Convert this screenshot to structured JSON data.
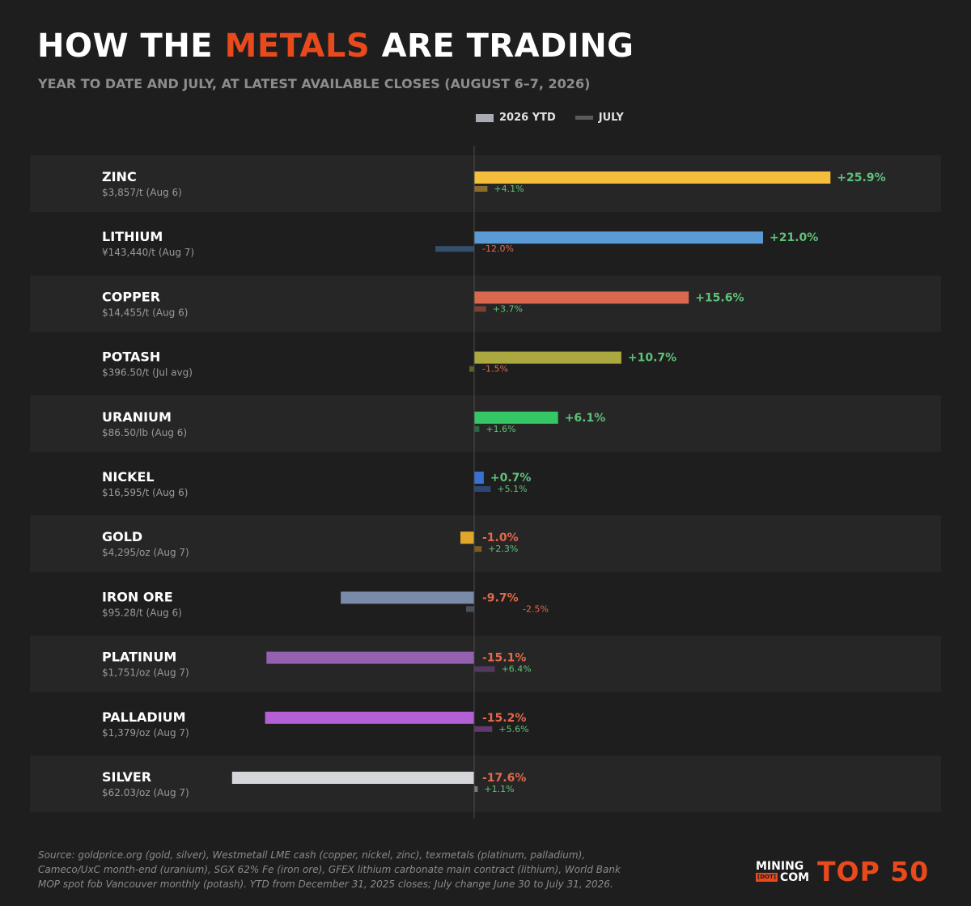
{
  "header": {
    "title_part1": "HOW THE",
    "title_accent": "METALS",
    "title_part2": "ARE TRADING",
    "subtitle": "YEAR TO DATE AND JULY, AT LATEST AVAILABLE CLOSES (AUGUST 6–7, 2026)"
  },
  "legend": {
    "ytd_label": "2026 YTD",
    "july_label": "JULY"
  },
  "colors": {
    "accent": "#e8491d",
    "positive": "#5fc27a",
    "negative": "#e06a4e",
    "background": "#1e1e1e",
    "row_band": "#262626"
  },
  "chart_data": {
    "type": "bar",
    "orientation": "horizontal",
    "unit": "%",
    "xlim": [
      -26,
      28
    ],
    "series": [
      {
        "name": "2026 YTD",
        "key": "ytd"
      },
      {
        "name": "JULY",
        "key": "july"
      }
    ],
    "categories": [
      "ZINC",
      "LITHIUM",
      "COPPER",
      "POTASH",
      "URANIUM",
      "NICKEL",
      "GOLD",
      "IRON ORE",
      "PLATINUM",
      "PALLADIUM",
      "SILVER"
    ],
    "rows": [
      {
        "name": "ZINC",
        "price": "$3,857/t",
        "date": "(Aug 6)",
        "ytd": 25.9,
        "july": 4.1,
        "ytd_label": "+25.9%",
        "july_label": "+4.1%",
        "color": "#f5bd3c",
        "july_color": "#8a6d2a"
      },
      {
        "name": "LITHIUM",
        "price": "¥143,440/t",
        "date": "(Aug 7)",
        "ytd": 21.0,
        "july": -12.0,
        "ytd_label": "+21.0%",
        "july_label": "-12.0%",
        "color": "#5b9bd5",
        "july_color": "#34506b"
      },
      {
        "name": "COPPER",
        "price": "$14,455/t",
        "date": "(Aug 6)",
        "ytd": 15.6,
        "july": 3.7,
        "ytd_label": "+15.6%",
        "july_label": "+3.7%",
        "color": "#d8694e",
        "july_color": "#7b3f33"
      },
      {
        "name": "POTASH",
        "price": "$396.50/t",
        "date": "(Jul avg)",
        "ytd": 10.7,
        "july": -1.5,
        "ytd_label": "+10.7%",
        "july_label": "-1.5%",
        "color": "#aaa83e",
        "july_color": "#625f2a"
      },
      {
        "name": "URANIUM",
        "price": "$86.50/lb",
        "date": "(Aug 6)",
        "ytd": 6.1,
        "july": 1.6,
        "ytd_label": "+6.1%",
        "july_label": "+1.6%",
        "color": "#35c766",
        "july_color": "#2a6b3e"
      },
      {
        "name": "NICKEL",
        "price": "$16,595/t",
        "date": "(Aug 6)",
        "ytd": 0.7,
        "july": 5.1,
        "ytd_label": "+0.7%",
        "july_label": "+5.1%",
        "color": "#3a70d4",
        "july_color": "#2e4673"
      },
      {
        "name": "GOLD",
        "price": "$4,295/oz",
        "date": "(Aug 7)",
        "ytd": -1.0,
        "july": 2.3,
        "ytd_label": "-1.0%",
        "july_label": "+2.3%",
        "color": "#e1a72b",
        "july_color": "#7b5d22"
      },
      {
        "name": "IRON ORE",
        "price": "$95.28/t",
        "date": "(Aug 6)",
        "ytd": -9.7,
        "july": -2.5,
        "ytd_label": "-9.7%",
        "july_label": "-2.5%",
        "color": "#7a8ba8",
        "july_color": "#4a505a"
      },
      {
        "name": "PLATINUM",
        "price": "$1,751/oz",
        "date": "(Aug 7)",
        "ytd": -15.1,
        "july": 6.4,
        "ytd_label": "-15.1%",
        "july_label": "+6.4%",
        "color": "#9460b0",
        "july_color": "#54395f"
      },
      {
        "name": "PALLADIUM",
        "price": "$1,379/oz",
        "date": "(Aug 7)",
        "ytd": -15.2,
        "july": 5.6,
        "ytd_label": "-15.2%",
        "july_label": "+5.6%",
        "color": "#b55fd6",
        "july_color": "#63386f"
      },
      {
        "name": "SILVER",
        "price": "$62.03/oz",
        "date": "(Aug 7)",
        "ytd": -17.6,
        "july": 1.1,
        "ytd_label": "-17.6%",
        "july_label": "+1.1%",
        "color": "#d4d6d9",
        "july_color": "#7a7a7a"
      }
    ]
  },
  "footer": {
    "source_text": "Source: goldprice.org (gold, silver), Westmetall LME cash (copper, nickel, zinc), texmetals (platinum, palladium), Cameco/UxC month-end (uranium), SGX 62% Fe (iron ore), GFEX lithium carbonate main contract (lithium), World Bank MOP spot fob Vancouver monthly (potash). YTD from December 31, 2025 closes; July change June 30 to July 31, 2026.",
    "logo_mining": "MINING",
    "logo_dot": "[DOT]",
    "logo_com": "COM",
    "logo_top50": "TOP 50"
  }
}
